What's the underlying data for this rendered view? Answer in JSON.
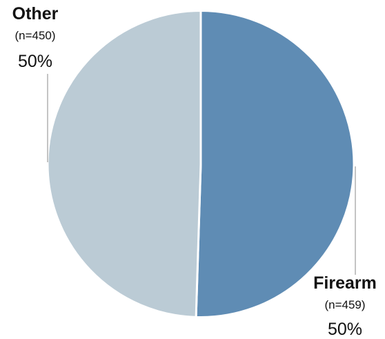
{
  "chart_data": {
    "type": "pie",
    "title": "",
    "slices": [
      {
        "name": "Firearm",
        "count_label": "(n=459)",
        "percent_label": "50%",
        "value": 459,
        "color": "#5f8cb4"
      },
      {
        "name": "Other",
        "count_label": "(n=450)",
        "percent_label": "50%",
        "value": 450,
        "color": "#bbcbd5"
      }
    ],
    "legend": "none",
    "start_angle": "12 o'clock, clockwise"
  }
}
